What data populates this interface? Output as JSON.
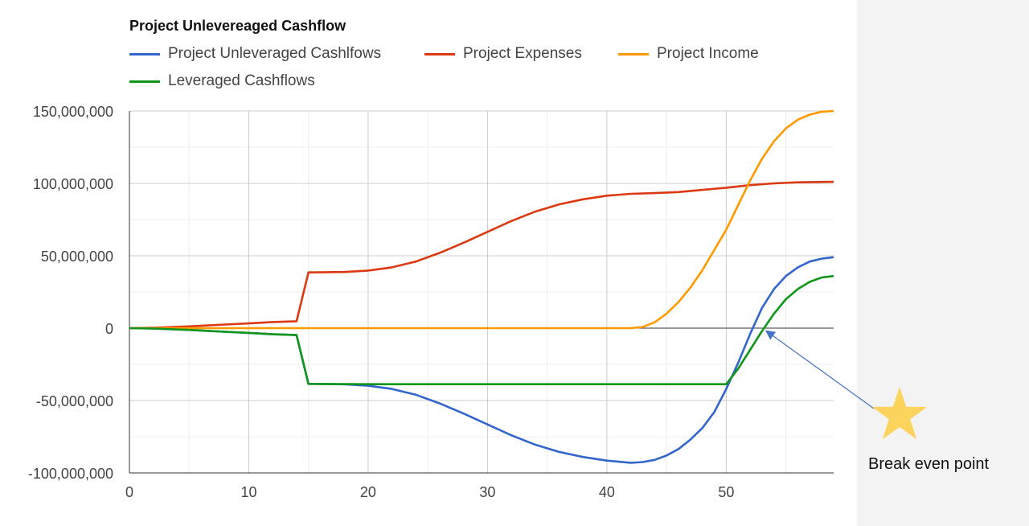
{
  "chart_data": {
    "type": "line",
    "title": "Project Unlevereaged Cashflow",
    "xlim": [
      0,
      59
    ],
    "ylim": [
      -100000000,
      150000000
    ],
    "x_ticks": [
      0,
      10,
      20,
      30,
      40,
      50
    ],
    "y_ticks": [
      -100000000,
      -50000000,
      0,
      50000000,
      100000000,
      150000000
    ],
    "x_tick_labels": [
      "0",
      "10",
      "20",
      "30",
      "40",
      "50"
    ],
    "y_tick_labels": [
      "-100,000,000",
      "-50,000,000",
      "0",
      "50,000,000",
      "100,000,000",
      "150,000,000"
    ],
    "grid": true,
    "legend_position": "top",
    "series": [
      {
        "name": "Project Unleveraged Cashlfows",
        "color": "#3366cc",
        "points": [
          [
            0,
            0
          ],
          [
            2,
            -300000
          ],
          [
            5,
            -1200000
          ],
          [
            8,
            -2500000
          ],
          [
            10,
            -3300000
          ],
          [
            12,
            -4200000
          ],
          [
            14,
            -4800000
          ],
          [
            15,
            -38500000
          ],
          [
            18,
            -38800000
          ],
          [
            20,
            -39800000
          ],
          [
            22,
            -42000000
          ],
          [
            24,
            -46000000
          ],
          [
            26,
            -52000000
          ],
          [
            28,
            -59000000
          ],
          [
            30,
            -66500000
          ],
          [
            32,
            -74000000
          ],
          [
            34,
            -80500000
          ],
          [
            36,
            -85500000
          ],
          [
            38,
            -89000000
          ],
          [
            40,
            -91500000
          ],
          [
            42,
            -93000000
          ],
          [
            43,
            -92500000
          ],
          [
            44,
            -91000000
          ],
          [
            45,
            -88000000
          ],
          [
            46,
            -83500000
          ],
          [
            47,
            -77000000
          ],
          [
            48,
            -69000000
          ],
          [
            49,
            -58000000
          ],
          [
            50,
            -42000000
          ],
          [
            51,
            -24000000
          ],
          [
            52,
            -4000000
          ],
          [
            53,
            14000000
          ],
          [
            54,
            27000000
          ],
          [
            55,
            36000000
          ],
          [
            56,
            42000000
          ],
          [
            57,
            46000000
          ],
          [
            58,
            48000000
          ],
          [
            59,
            49000000
          ]
        ]
      },
      {
        "name": "Project Expenses",
        "color": "#dc3912",
        "points": [
          [
            0,
            0
          ],
          [
            2,
            300000
          ],
          [
            5,
            1200000
          ],
          [
            8,
            2500000
          ],
          [
            10,
            3300000
          ],
          [
            12,
            4200000
          ],
          [
            14,
            4800000
          ],
          [
            15,
            38500000
          ],
          [
            18,
            38800000
          ],
          [
            20,
            39800000
          ],
          [
            22,
            42000000
          ],
          [
            24,
            46000000
          ],
          [
            26,
            52000000
          ],
          [
            28,
            59000000
          ],
          [
            30,
            66500000
          ],
          [
            32,
            74000000
          ],
          [
            34,
            80500000
          ],
          [
            36,
            85500000
          ],
          [
            38,
            89000000
          ],
          [
            40,
            91500000
          ],
          [
            42,
            92800000
          ],
          [
            44,
            93300000
          ],
          [
            46,
            94000000
          ],
          [
            48,
            95500000
          ],
          [
            50,
            97000000
          ],
          [
            52,
            98800000
          ],
          [
            54,
            100000000
          ],
          [
            56,
            100700000
          ],
          [
            58,
            101000000
          ],
          [
            59,
            101100000
          ]
        ]
      },
      {
        "name": "Project Income",
        "color": "#ff9900",
        "points": [
          [
            0,
            0
          ],
          [
            10,
            0
          ],
          [
            20,
            0
          ],
          [
            30,
            0
          ],
          [
            40,
            0
          ],
          [
            42,
            0
          ],
          [
            43,
            800000
          ],
          [
            44,
            4000000
          ],
          [
            45,
            10000000
          ],
          [
            46,
            18000000
          ],
          [
            47,
            28000000
          ],
          [
            48,
            40000000
          ],
          [
            49,
            54000000
          ],
          [
            50,
            68000000
          ],
          [
            51,
            85000000
          ],
          [
            52,
            102000000
          ],
          [
            53,
            117000000
          ],
          [
            54,
            129000000
          ],
          [
            55,
            138000000
          ],
          [
            56,
            144000000
          ],
          [
            57,
            147500000
          ],
          [
            58,
            149500000
          ],
          [
            59,
            150000000
          ]
        ]
      },
      {
        "name": "Leveraged Cashflows",
        "color": "#109618",
        "points": [
          [
            0,
            0
          ],
          [
            2,
            -300000
          ],
          [
            5,
            -1200000
          ],
          [
            8,
            -2500000
          ],
          [
            10,
            -3300000
          ],
          [
            12,
            -4200000
          ],
          [
            14,
            -4800000
          ],
          [
            15,
            -38500000
          ],
          [
            20,
            -38700000
          ],
          [
            30,
            -38700000
          ],
          [
            40,
            -38700000
          ],
          [
            48,
            -38700000
          ],
          [
            50,
            -38700000
          ],
          [
            51,
            -28000000
          ],
          [
            52,
            -15000000
          ],
          [
            53,
            -2000000
          ],
          [
            54,
            10000000
          ],
          [
            55,
            20000000
          ],
          [
            56,
            27000000
          ],
          [
            57,
            32000000
          ],
          [
            58,
            35000000
          ],
          [
            59,
            36000000
          ]
        ]
      }
    ],
    "annotation": {
      "label": "Break even point",
      "point_x": 53.2,
      "point_y": 0,
      "marker": "star-icon",
      "marker_color": "#fcd35c",
      "arrow_color": "#4472c4"
    }
  }
}
